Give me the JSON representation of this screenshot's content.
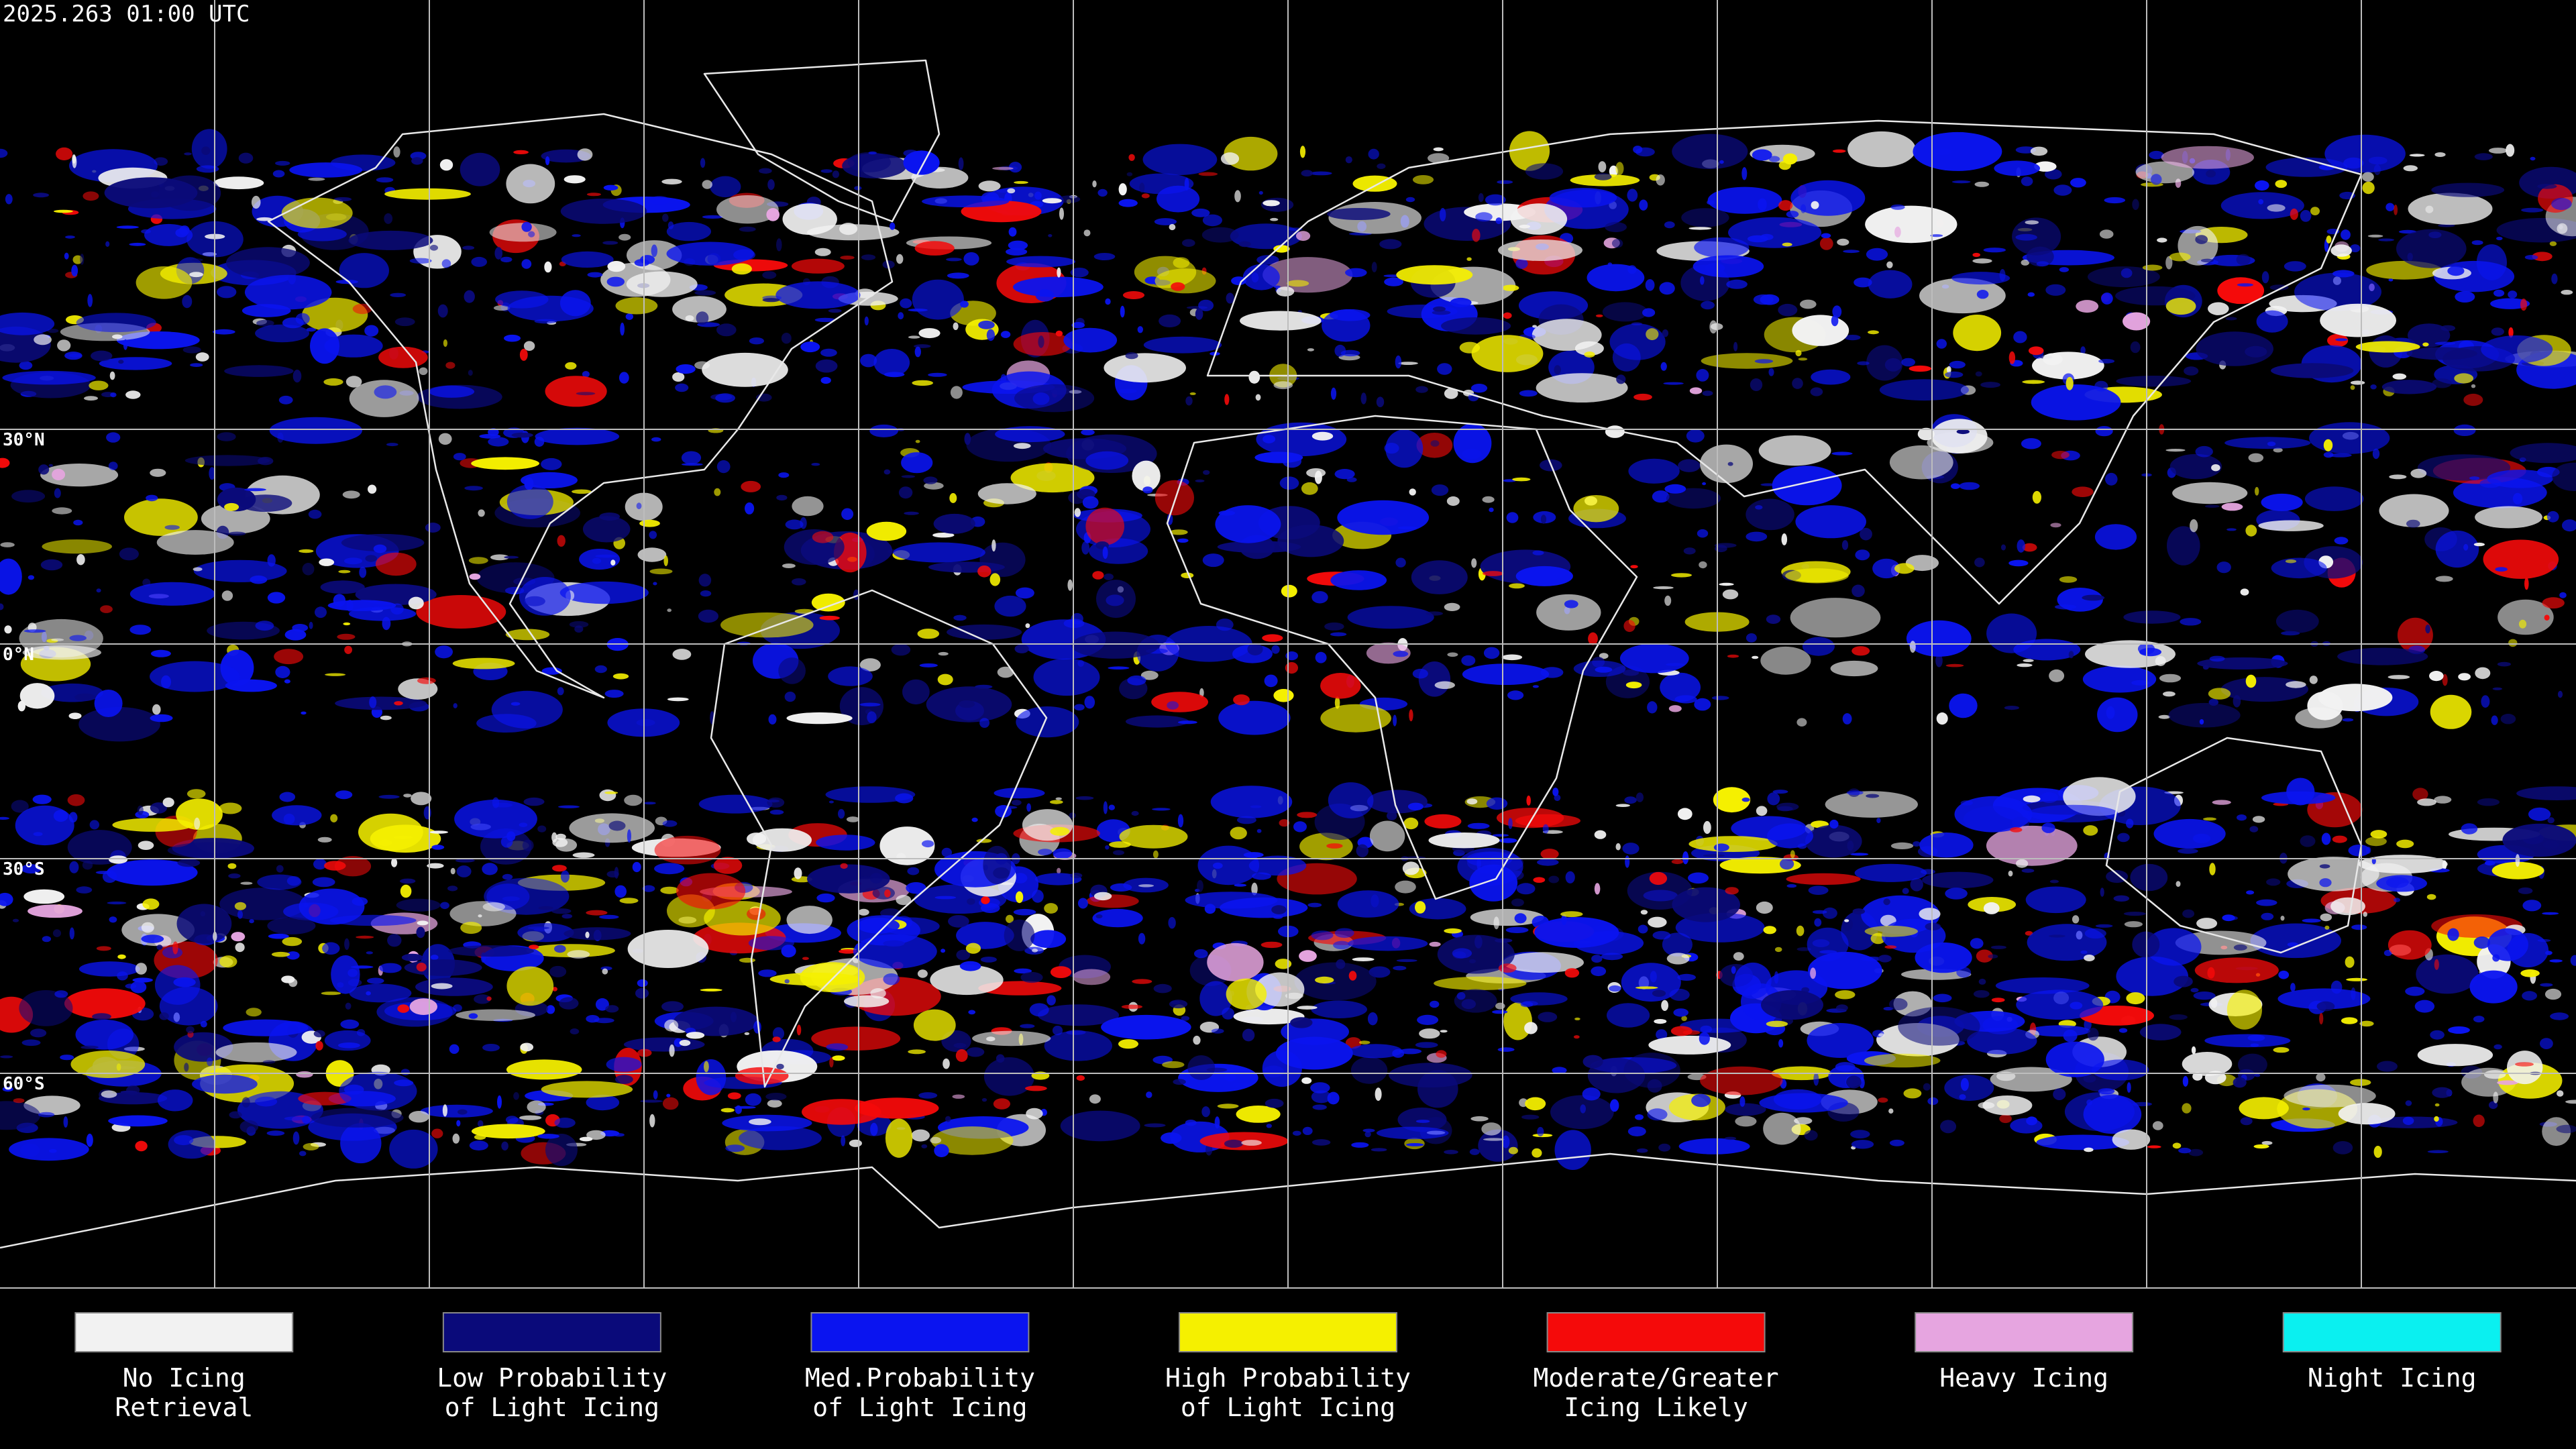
{
  "header": {
    "timestamp": "2025.263 01:00 UTC"
  },
  "map": {
    "lat_labels": [
      "30°N",
      "0°N",
      "30°S",
      "60°S"
    ]
  },
  "legend": [
    {
      "lines": [
        "No Icing",
        "Retrieval"
      ],
      "color": "#f2f2f2"
    },
    {
      "lines": [
        "Low Probability",
        "of Light Icing"
      ],
      "color": "#0a0a7a"
    },
    {
      "lines": [
        "Med.Probability",
        "of Light Icing"
      ],
      "color": "#0a14f0"
    },
    {
      "lines": [
        "High Probability",
        "of Light Icing"
      ],
      "color": "#f5f000"
    },
    {
      "lines": [
        "Moderate/Greater",
        "Icing Likely"
      ],
      "color": "#f50a0a"
    },
    {
      "lines": [
        "Heavy Icing"
      ],
      "color": "#e6a5e0"
    },
    {
      "lines": [
        "Night Icing"
      ],
      "color": "#0af0f0"
    }
  ]
}
